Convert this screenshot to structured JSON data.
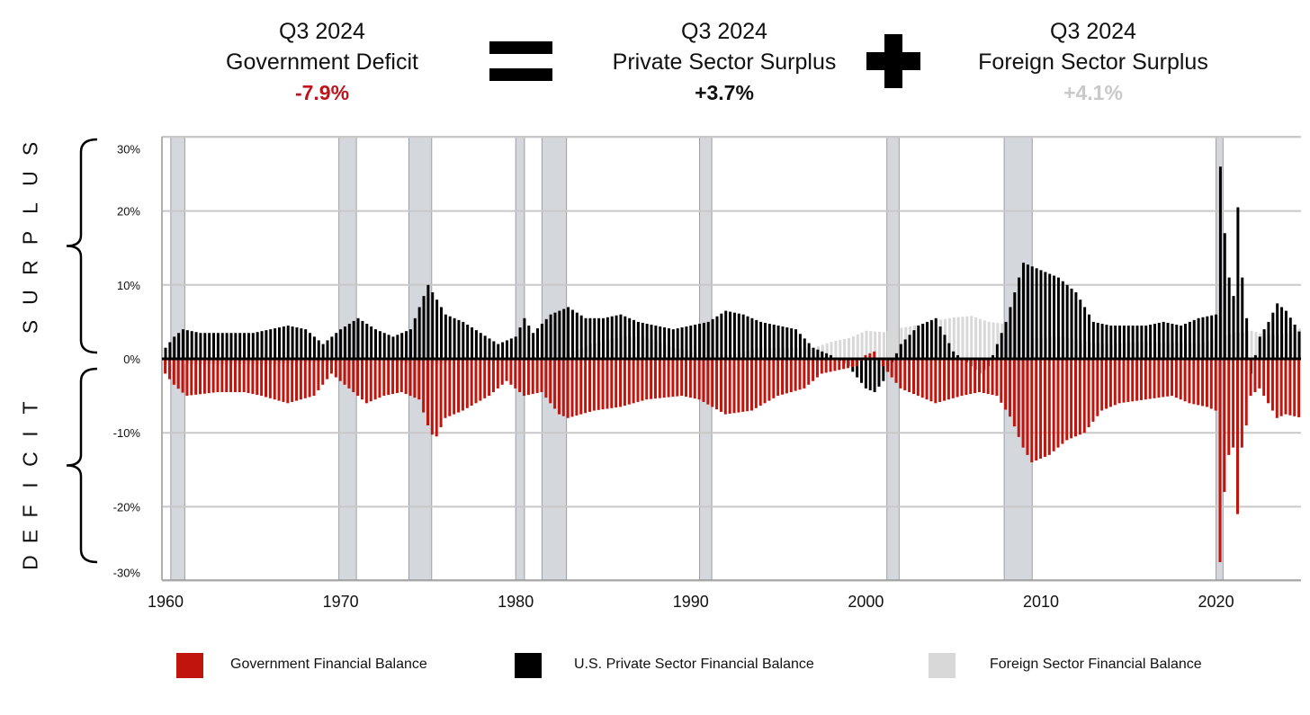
{
  "header": {
    "government": {
      "period": "Q3 2024",
      "label": "Government Deficit",
      "value": "-7.9%",
      "color": "#c0141c"
    },
    "private": {
      "period": "Q3 2024",
      "label": "Private Sector Surplus",
      "value": "+3.7%",
      "color": "#111111"
    },
    "foreign": {
      "period": "Q3 2024",
      "label": "Foreign Sector Surplus",
      "value": "+4.1%",
      "color": "#c9c9c9"
    }
  },
  "side_labels": {
    "surplus": "SURPLUS",
    "deficit": "DEFICIT"
  },
  "legend": {
    "government": {
      "label": "Government Financial Balance",
      "color": "#c0140c"
    },
    "private": {
      "label": "U.S. Private Sector Financial Balance",
      "color": "#000000"
    },
    "foreign": {
      "label": "Foreign Sector Financial Balance",
      "color": "#d8d8d8"
    }
  },
  "chart_data": {
    "type": "bar",
    "x_label_unit": "year",
    "xlim": [
      1960,
      2024.75
    ],
    "ylim": [
      -30,
      30
    ],
    "y_ticks": [
      30,
      20,
      10,
      0,
      -10,
      -20,
      -30
    ],
    "y_tick_labels": [
      "30%",
      "20%",
      "10%",
      "0%",
      "-10%",
      "-20%",
      "-30%"
    ],
    "x_ticks": [
      1960,
      1970,
      1980,
      1990,
      2000,
      2010,
      2020
    ],
    "x_tick_labels": [
      "1960",
      "1970",
      "1980",
      "1990",
      "2000",
      "2010",
      "2020"
    ],
    "grid": true,
    "recessions": [
      [
        1960.3,
        1961.1
      ],
      [
        1969.9,
        1970.9
      ],
      [
        1973.9,
        1975.2
      ],
      [
        1980.0,
        1980.5
      ],
      [
        1981.5,
        1982.9
      ],
      [
        1990.5,
        1991.2
      ],
      [
        2001.2,
        2001.9
      ],
      [
        2007.9,
        2009.5
      ],
      [
        2020.0,
        2020.4
      ]
    ],
    "keyframes": {
      "government": [
        [
          1960,
          -2
        ],
        [
          1960.5,
          -3.5
        ],
        [
          1961.2,
          -5
        ],
        [
          1963,
          -4.5
        ],
        [
          1964.5,
          -4.5
        ],
        [
          1965.5,
          -5
        ],
        [
          1967,
          -6
        ],
        [
          1968.5,
          -5
        ],
        [
          1969.5,
          -2
        ],
        [
          1970.5,
          -4
        ],
        [
          1971.5,
          -6
        ],
        [
          1972.5,
          -5
        ],
        [
          1973.5,
          -4.5
        ],
        [
          1974.5,
          -5.5
        ],
        [
          1975,
          -9
        ],
        [
          1975.4,
          -11
        ],
        [
          1976,
          -8
        ],
        [
          1977,
          -7
        ],
        [
          1978.5,
          -5
        ],
        [
          1979.5,
          -3
        ],
        [
          1980.5,
          -5
        ],
        [
          1981.5,
          -4.5
        ],
        [
          1982.5,
          -7.5
        ],
        [
          1983,
          -8
        ],
        [
          1984.5,
          -7
        ],
        [
          1986,
          -6.5
        ],
        [
          1987.5,
          -5.5
        ],
        [
          1989.5,
          -5
        ],
        [
          1990.5,
          -5.5
        ],
        [
          1992,
          -7.5
        ],
        [
          1993.5,
          -7
        ],
        [
          1995,
          -5
        ],
        [
          1996.5,
          -4
        ],
        [
          1997.5,
          -2
        ],
        [
          1998.5,
          -1.5
        ],
        [
          1999.5,
          -1
        ],
        [
          2000,
          0.5
        ],
        [
          2000.5,
          1
        ],
        [
          2001,
          -1
        ],
        [
          2002,
          -4
        ],
        [
          2003,
          -5
        ],
        [
          2004,
          -6
        ],
        [
          2005.5,
          -5
        ],
        [
          2006.5,
          -4.5
        ],
        [
          2007.5,
          -5
        ],
        [
          2008.3,
          -8
        ],
        [
          2009,
          -12
        ],
        [
          2009.5,
          -14
        ],
        [
          2010.5,
          -13
        ],
        [
          2011.5,
          -11
        ],
        [
          2012.5,
          -10
        ],
        [
          2013.5,
          -7
        ],
        [
          2014.5,
          -6
        ],
        [
          2016,
          -5.5
        ],
        [
          2017.5,
          -5
        ],
        [
          2018.5,
          -6
        ],
        [
          2019.5,
          -6.5
        ],
        [
          2020,
          -7
        ],
        [
          2020.25,
          -27.5
        ],
        [
          2020.5,
          -18
        ],
        [
          2020.75,
          -13
        ],
        [
          2021,
          -12
        ],
        [
          2021.25,
          -21
        ],
        [
          2021.5,
          -12
        ],
        [
          2021.75,
          -9
        ],
        [
          2022,
          -5
        ],
        [
          2022.5,
          -4
        ],
        [
          2023,
          -6
        ],
        [
          2023.5,
          -8
        ],
        [
          2024,
          -7.5
        ],
        [
          2024.75,
          -7.9
        ]
      ],
      "private": [
        [
          1960,
          1.5
        ],
        [
          1960.5,
          3
        ],
        [
          1961,
          4
        ],
        [
          1962,
          3.5
        ],
        [
          1963,
          3.5
        ],
        [
          1964,
          3.5
        ],
        [
          1965,
          3.5
        ],
        [
          1966,
          4
        ],
        [
          1967,
          4.5
        ],
        [
          1968,
          4
        ],
        [
          1969,
          2
        ],
        [
          1970,
          4
        ],
        [
          1971,
          5.5
        ],
        [
          1972,
          4
        ],
        [
          1973,
          3
        ],
        [
          1974,
          4
        ],
        [
          1975,
          10
        ],
        [
          1975.5,
          8
        ],
        [
          1976,
          6
        ],
        [
          1977,
          5
        ],
        [
          1978,
          3.5
        ],
        [
          1979,
          2
        ],
        [
          1980,
          3
        ],
        [
          1980.5,
          5.5
        ],
        [
          1981,
          3.5
        ],
        [
          1982,
          6
        ],
        [
          1983,
          7
        ],
        [
          1984,
          5.5
        ],
        [
          1985,
          5.5
        ],
        [
          1986,
          6
        ],
        [
          1987,
          5
        ],
        [
          1988,
          4.5
        ],
        [
          1989,
          4
        ],
        [
          1990,
          4.5
        ],
        [
          1991,
          5
        ],
        [
          1992,
          6.5
        ],
        [
          1993,
          6
        ],
        [
          1994,
          5
        ],
        [
          1995,
          4.5
        ],
        [
          1996,
          4
        ],
        [
          1997,
          1.5
        ],
        [
          1998,
          0.5
        ],
        [
          1999,
          -1
        ],
        [
          2000,
          -4
        ],
        [
          2000.5,
          -4.5
        ],
        [
          2001,
          -3
        ],
        [
          2002,
          2
        ],
        [
          2003,
          4.5
        ],
        [
          2004,
          5.5
        ],
        [
          2005,
          1
        ],
        [
          2006,
          -1
        ],
        [
          2006.5,
          -2
        ],
        [
          2007,
          -1
        ],
        [
          2008,
          5
        ],
        [
          2009,
          13
        ],
        [
          2010,
          12
        ],
        [
          2011,
          11
        ],
        [
          2012,
          9
        ],
        [
          2013,
          5
        ],
        [
          2014,
          4.5
        ],
        [
          2015,
          4.5
        ],
        [
          2016,
          4.5
        ],
        [
          2017,
          5
        ],
        [
          2018,
          4.5
        ],
        [
          2019,
          5.5
        ],
        [
          2020,
          6
        ],
        [
          2020.25,
          26
        ],
        [
          2020.5,
          17
        ],
        [
          2020.75,
          11
        ],
        [
          2021,
          8.5
        ],
        [
          2021.25,
          20.5
        ],
        [
          2021.5,
          11
        ],
        [
          2021.75,
          5.5
        ],
        [
          2022,
          -2
        ],
        [
          2022.5,
          3
        ],
        [
          2023,
          5
        ],
        [
          2023.5,
          7.5
        ],
        [
          2024,
          6.5
        ],
        [
          2024.75,
          3.7
        ]
      ],
      "foreign": [
        [
          1960,
          -0.7
        ],
        [
          1966,
          -0.7
        ],
        [
          1968,
          -0.5
        ],
        [
          1970,
          -0.5
        ],
        [
          1972,
          0.3
        ],
        [
          1973,
          -0.4
        ],
        [
          1975,
          -1
        ],
        [
          1976,
          -0.5
        ],
        [
          1977,
          0.3
        ],
        [
          1979,
          -0.3
        ],
        [
          1980,
          -0.3
        ],
        [
          1981,
          -0.2
        ],
        [
          1982,
          0
        ],
        [
          1983,
          0.8
        ],
        [
          1984,
          1.8
        ],
        [
          1985,
          2.5
        ],
        [
          1986,
          3
        ],
        [
          1987,
          3
        ],
        [
          1988,
          2.5
        ],
        [
          1989,
          1.5
        ],
        [
          1990,
          1
        ],
        [
          1991,
          0
        ],
        [
          1992,
          0.5
        ],
        [
          1993,
          1
        ],
        [
          1994,
          1.5
        ],
        [
          1995,
          1.5
        ],
        [
          1996,
          1.5
        ],
        [
          1997,
          1.5
        ],
        [
          1998,
          2.3
        ],
        [
          1999,
          2.8
        ],
        [
          2000,
          3.8
        ],
        [
          2001,
          3.6
        ],
        [
          2002,
          4.2
        ],
        [
          2003,
          4.6
        ],
        [
          2004,
          5.2
        ],
        [
          2005,
          5.6
        ],
        [
          2006,
          5.8
        ],
        [
          2007,
          5
        ],
        [
          2008,
          4.7
        ],
        [
          2009,
          2.6
        ],
        [
          2010,
          2.9
        ],
        [
          2011,
          3
        ],
        [
          2012,
          2.6
        ],
        [
          2013,
          2.1
        ],
        [
          2014,
          2
        ],
        [
          2015,
          2.2
        ],
        [
          2016,
          2.3
        ],
        [
          2017,
          2.2
        ],
        [
          2018,
          2.2
        ],
        [
          2019,
          2.1
        ],
        [
          2020,
          2.8
        ],
        [
          2021,
          3.5
        ],
        [
          2022,
          3.8
        ],
        [
          2023,
          3.1
        ],
        [
          2024,
          3.5
        ],
        [
          2024.75,
          4.1
        ]
      ]
    }
  }
}
